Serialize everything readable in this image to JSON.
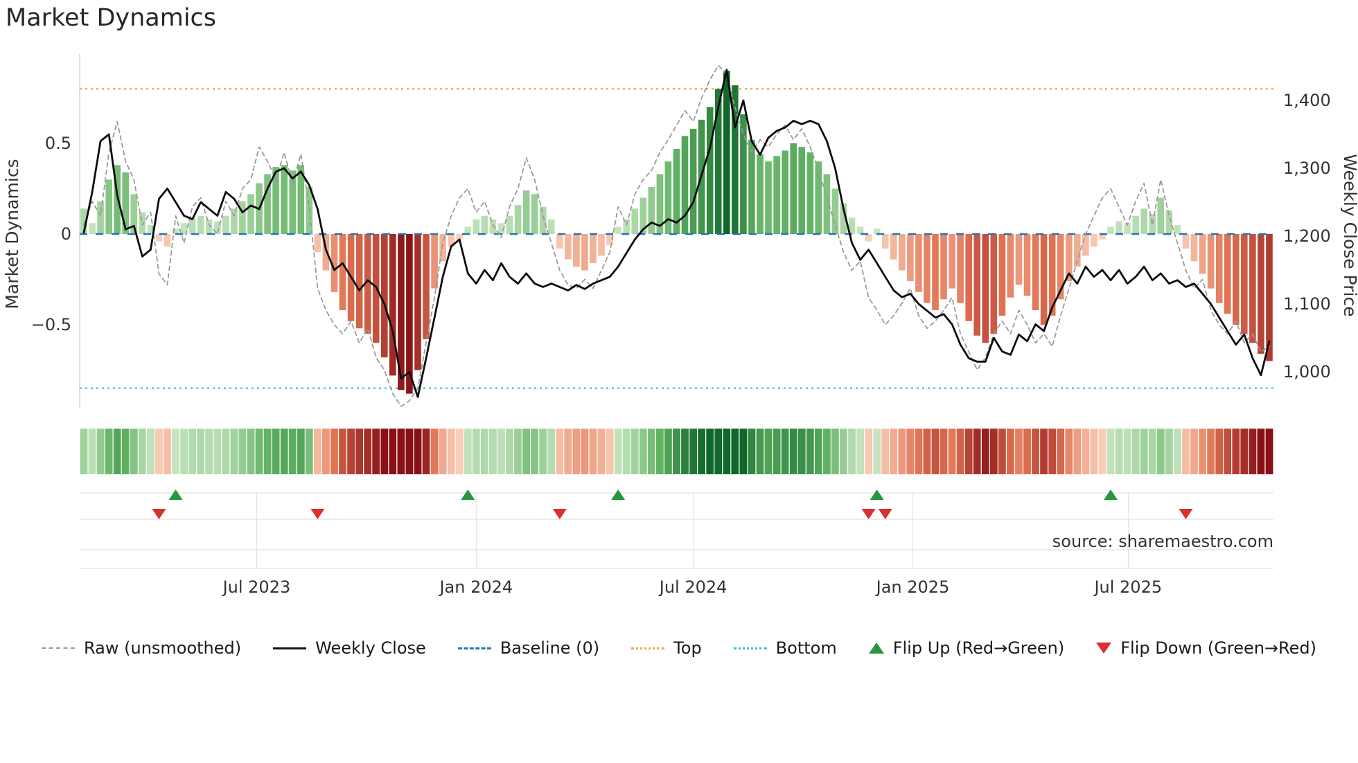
{
  "title": "Market Dynamics",
  "source": "source: sharemaestro.com",
  "axes": {
    "left_label": "Market Dynamics",
    "right_label": "Weekly Close Price",
    "left_ticks": [
      {
        "v": 0.5,
        "label": "0.5"
      },
      {
        "v": 0,
        "label": "0"
      },
      {
        "v": -0.5,
        "label": "−0.5"
      }
    ],
    "right_ticks": [
      {
        "v": 1400,
        "label": "1,400"
      },
      {
        "v": 1300,
        "label": "1,300"
      },
      {
        "v": 1200,
        "label": "1,200"
      },
      {
        "v": 1100,
        "label": "1,100"
      },
      {
        "v": 1000,
        "label": "1,000"
      }
    ],
    "x_ticks": [
      {
        "label": "Jul 2023",
        "week": 20.7
      },
      {
        "label": "Jan 2024",
        "week": 47.0
      },
      {
        "label": "Jul 2024",
        "week": 73.0
      },
      {
        "label": "Jan 2025",
        "week": 99.3
      },
      {
        "label": "Jul 2025",
        "week": 125.1
      }
    ]
  },
  "legend": {
    "raw": "Raw (unsmoothed)",
    "close": "Weekly Close",
    "baseline": "Baseline (0)",
    "top": "Top",
    "bottom": "Bottom",
    "flip_up": "Flip Up (Red→Green)",
    "flip_down": "Flip Down (Green→Red)"
  },
  "colors": {
    "raw_line": "#9a9a9a",
    "close_line": "#0d0d0d",
    "baseline": "#1f77b4",
    "top_line": "#f0a048",
    "bottom_line": "#35b8e8",
    "flip_up": "#27963c",
    "flip_down": "#d93030",
    "pos_light": "#cfe9c8",
    "pos_mid": "#63b365",
    "pos_dark": "#10682a",
    "neg_light": "#fcd6c0",
    "neg_mid": "#e07252",
    "neg_dark": "#881016",
    "grid": "#d8d8d8",
    "spine": "#c9c9c9"
  },
  "chart_data": {
    "type": "bar+line composite (weekly oscillator bars, raw oscillator line on left axis, close price line on right axis, heatmap strip of bar values, flip markers)",
    "title": "Market Dynamics",
    "x_start": "2023-02-06",
    "x_freq_days": 7,
    "n_weeks": 143,
    "left_axis": {
      "label": "Market Dynamics",
      "ticks": [
        0.5,
        0,
        -0.5
      ],
      "range": [
        -0.99,
        0.99
      ]
    },
    "right_axis": {
      "label": "Weekly Close Price",
      "ticks": [
        1400,
        1300,
        1200,
        1100,
        1000
      ],
      "range": [
        955,
        1465
      ]
    },
    "baseline": 0,
    "top_line": 0.8,
    "bottom_line": -0.85,
    "series": [
      {
        "name": "Oscillator (smoothed bars, also drives heatmap strip colors)",
        "axis": "left",
        "render": "bar",
        "values": [
          0.14,
          0.06,
          0.18,
          0.3,
          0.38,
          0.34,
          0.22,
          0.12,
          0.05,
          -0.04,
          -0.07,
          0.03,
          0.06,
          0.09,
          0.1,
          0.08,
          0.07,
          0.1,
          0.14,
          0.18,
          0.22,
          0.28,
          0.33,
          0.37,
          0.38,
          0.35,
          0.38,
          0.26,
          -0.1,
          -0.2,
          -0.32,
          -0.42,
          -0.48,
          -0.52,
          -0.55,
          -0.6,
          -0.68,
          -0.78,
          -0.86,
          -0.88,
          -0.75,
          -0.58,
          -0.3,
          -0.15,
          -0.07,
          -0.03,
          0.04,
          0.08,
          0.1,
          0.08,
          0.06,
          0.1,
          0.16,
          0.24,
          0.22,
          0.15,
          0.08,
          -0.08,
          -0.14,
          -0.18,
          -0.2,
          -0.16,
          -0.12,
          -0.06,
          0.04,
          0.08,
          0.14,
          0.2,
          0.26,
          0.33,
          0.4,
          0.47,
          0.54,
          0.58,
          0.63,
          0.7,
          0.8,
          0.9,
          0.82,
          0.66,
          0.52,
          0.44,
          0.4,
          0.43,
          0.46,
          0.5,
          0.48,
          0.45,
          0.4,
          0.33,
          0.25,
          0.17,
          0.09,
          0.04,
          -0.04,
          0.03,
          -0.08,
          -0.14,
          -0.2,
          -0.26,
          -0.32,
          -0.38,
          -0.42,
          -0.36,
          -0.3,
          -0.38,
          -0.48,
          -0.56,
          -0.6,
          -0.55,
          -0.45,
          -0.35,
          -0.28,
          -0.34,
          -0.42,
          -0.5,
          -0.45,
          -0.36,
          -0.26,
          -0.18,
          -0.12,
          -0.07,
          -0.03,
          0.04,
          0.07,
          0.06,
          0.1,
          0.14,
          0.11,
          0.2,
          0.13,
          0.05,
          -0.08,
          -0.15,
          -0.22,
          -0.3,
          -0.38,
          -0.44,
          -0.5,
          -0.55,
          -0.6,
          -0.66,
          -0.7
        ]
      },
      {
        "name": "Raw (unsmoothed)",
        "axis": "left",
        "render": "dashed-line",
        "values": [
          0.05,
          0.18,
          0.1,
          0.45,
          0.62,
          0.4,
          0.3,
          0.05,
          0.12,
          -0.22,
          -0.28,
          0.1,
          -0.05,
          0.15,
          0.2,
          0.05,
          0.0,
          0.18,
          0.1,
          0.25,
          0.3,
          0.48,
          0.4,
          0.3,
          0.45,
          0.28,
          0.44,
          0.15,
          -0.3,
          -0.42,
          -0.5,
          -0.55,
          -0.48,
          -0.6,
          -0.52,
          -0.68,
          -0.75,
          -0.88,
          -0.95,
          -0.92,
          -0.85,
          -0.6,
          -0.35,
          -0.05,
          0.1,
          0.2,
          0.25,
          0.12,
          0.18,
          0.05,
          -0.02,
          0.15,
          0.25,
          0.42,
          0.3,
          0.1,
          -0.05,
          -0.2,
          -0.28,
          -0.3,
          -0.25,
          -0.3,
          -0.2,
          -0.1,
          0.15,
          0.05,
          0.22,
          0.3,
          0.35,
          0.45,
          0.52,
          0.6,
          0.68,
          0.62,
          0.75,
          0.85,
          0.93,
          0.88,
          0.7,
          0.55,
          0.45,
          0.52,
          0.48,
          0.55,
          0.6,
          0.52,
          0.58,
          0.48,
          0.35,
          0.2,
          0.05,
          -0.1,
          -0.2,
          -0.15,
          -0.35,
          -0.42,
          -0.5,
          -0.45,
          -0.38,
          -0.3,
          -0.45,
          -0.52,
          -0.48,
          -0.42,
          -0.35,
          -0.55,
          -0.65,
          -0.75,
          -0.68,
          -0.55,
          -0.48,
          -0.55,
          -0.42,
          -0.5,
          -0.6,
          -0.55,
          -0.62,
          -0.45,
          -0.3,
          -0.15,
          0.0,
          0.1,
          0.2,
          0.25,
          0.15,
          0.05,
          0.18,
          0.28,
          0.05,
          0.3,
          0.1,
          -0.05,
          -0.2,
          -0.3,
          -0.25,
          -0.42,
          -0.5,
          -0.55,
          -0.48,
          -0.6,
          -0.55,
          -0.65,
          -0.62
        ]
      },
      {
        "name": "Weekly Close",
        "axis": "right",
        "render": "solid-line",
        "values": [
          1205,
          1265,
          1340,
          1350,
          1260,
          1210,
          1215,
          1170,
          1180,
          1255,
          1270,
          1250,
          1230,
          1225,
          1250,
          1240,
          1230,
          1265,
          1255,
          1235,
          1245,
          1240,
          1270,
          1295,
          1300,
          1285,
          1295,
          1275,
          1240,
          1180,
          1150,
          1160,
          1140,
          1120,
          1135,
          1125,
          1100,
          1060,
          990,
          1000,
          963,
          1020,
          1080,
          1140,
          1185,
          1195,
          1145,
          1130,
          1150,
          1135,
          1160,
          1140,
          1130,
          1145,
          1130,
          1125,
          1130,
          1125,
          1120,
          1128,
          1122,
          1130,
          1135,
          1140,
          1155,
          1175,
          1195,
          1210,
          1220,
          1215,
          1225,
          1220,
          1230,
          1250,
          1290,
          1330,
          1390,
          1445,
          1360,
          1400,
          1340,
          1320,
          1345,
          1355,
          1360,
          1370,
          1365,
          1370,
          1365,
          1340,
          1300,
          1240,
          1190,
          1165,
          1180,
          1160,
          1140,
          1120,
          1110,
          1115,
          1100,
          1090,
          1080,
          1085,
          1070,
          1040,
          1020,
          1015,
          1015,
          1050,
          1030,
          1025,
          1055,
          1045,
          1070,
          1060,
          1095,
          1120,
          1145,
          1130,
          1155,
          1140,
          1150,
          1135,
          1150,
          1130,
          1140,
          1155,
          1135,
          1145,
          1130,
          1135,
          1125,
          1130,
          1115,
          1100,
          1080,
          1060,
          1040,
          1055,
          1020,
          995,
          1045
        ]
      }
    ],
    "flip_up_weeks": [
      11,
      46,
      64,
      95,
      123
    ],
    "flip_down_weeks": [
      9,
      28,
      57,
      94,
      96,
      132
    ],
    "heatmap_note": "color strip cells = oscillator bar values, green positive / red negative, darker = larger magnitude"
  }
}
